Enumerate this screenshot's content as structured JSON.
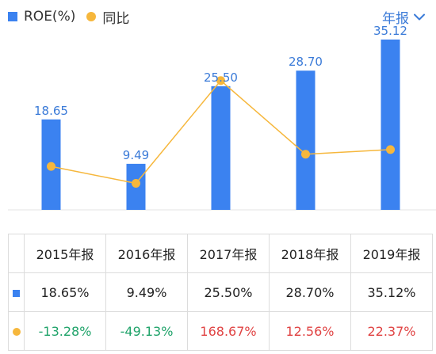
{
  "legend": {
    "roe_label": "ROE(%)",
    "yoy_label": "同比"
  },
  "period_selector": {
    "label": "年报"
  },
  "colors": {
    "bar": "#3B82F0",
    "line": "#F6B73C",
    "positive": "#E04343",
    "negative": "#20A36A",
    "label": "#3B7BD8"
  },
  "chart_data": {
    "type": "bar",
    "categories": [
      "2015年报",
      "2016年报",
      "2017年报",
      "2018年报",
      "2019年报"
    ],
    "series": [
      {
        "name": "ROE(%)",
        "type": "bar",
        "values": [
          18.65,
          9.49,
          25.5,
          28.7,
          35.12
        ],
        "labels": [
          "18.65",
          "9.49",
          "25.50",
          "28.70",
          "35.12"
        ]
      },
      {
        "name": "同比",
        "type": "line",
        "values": [
          -13.28,
          -49.13,
          168.67,
          12.56,
          22.37
        ]
      }
    ],
    "grid": false,
    "legend_position": "top-left"
  },
  "table": {
    "headers": [
      "2015年报",
      "2016年报",
      "2017年报",
      "2018年报",
      "2019年报"
    ],
    "roe_row": [
      "18.65%",
      "9.49%",
      "25.50%",
      "28.70%",
      "35.12%"
    ],
    "yoy_row": [
      "-13.28%",
      "-49.13%",
      "168.67%",
      "12.56%",
      "22.37%"
    ]
  }
}
